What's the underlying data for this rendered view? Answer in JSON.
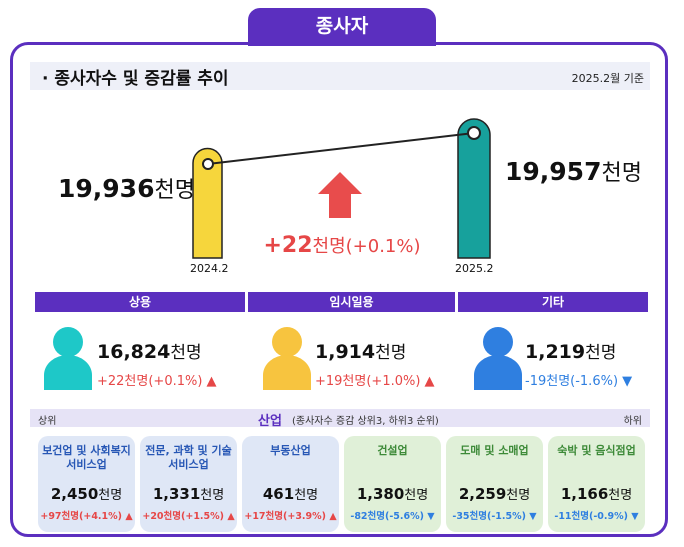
{
  "header": {
    "tab": "종사자",
    "title": "종사자수 및 증감률 추이",
    "note": "2025.2월 기준"
  },
  "trend": {
    "before": {
      "value": "19,936",
      "unit": "천명",
      "period": "2024.2"
    },
    "after": {
      "value": "19,957",
      "unit": "천명",
      "period": "2025.2"
    },
    "change": {
      "sign_value": "+22",
      "unit": "천명",
      "rate": "(+0.1%)"
    }
  },
  "status": [
    {
      "label": "상용",
      "value": "16,824",
      "unit": "천명",
      "change": "+22천명(+0.1%)"
    },
    {
      "label": "임시일용",
      "value": "1,914",
      "unit": "천명",
      "change": "+19천명(+1.0%)"
    },
    {
      "label": "기타",
      "value": "1,219",
      "unit": "천명",
      "change": "-19천명(-1.6%)"
    }
  ],
  "industry": {
    "top_label": "상위",
    "title": "산업",
    "subtitle": "(종사자수 증감 상위3, 하위3 순위)",
    "bottom_label": "하위",
    "cards": [
      {
        "name": "보건업 및 사회복지 서비스업",
        "value": "2,450",
        "unit": "천명",
        "change": "+97천명(+4.1%)"
      },
      {
        "name": "전문, 과학 및 기술 서비스업",
        "value": "1,331",
        "unit": "천명",
        "change": "+20천명(+1.5%)"
      },
      {
        "name": "부동산업",
        "value": "461",
        "unit": "천명",
        "change": "+17천명(+3.9%)"
      },
      {
        "name": "건설업",
        "value": "1,380",
        "unit": "천명",
        "change": "-82천명(-5.6%)"
      },
      {
        "name": "도매 및 소매업",
        "value": "2,259",
        "unit": "천명",
        "change": "-35천명(-1.5%)"
      },
      {
        "name": "숙박 및 음식점업",
        "value": "1,166",
        "unit": "천명",
        "change": "-11천명(-0.9%)"
      }
    ]
  }
}
